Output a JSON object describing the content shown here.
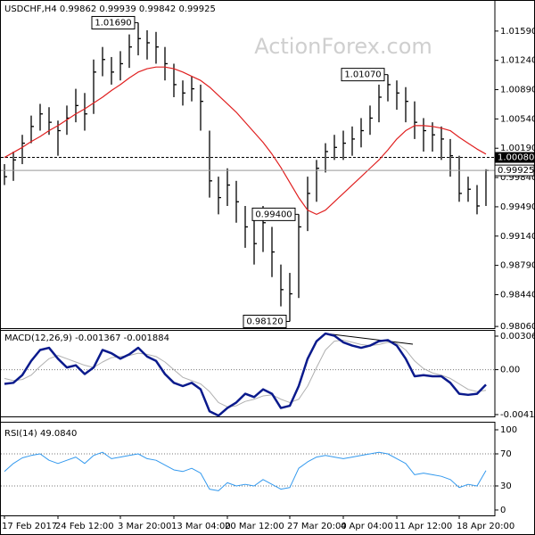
{
  "chart_data": [
    {
      "type": "ohlc",
      "title": "USDCHF,H4 0.99862 0.99939 0.99842 0.99925",
      "watermark": "ActionForex.com",
      "categories": [
        "17 Feb 2017",
        null,
        null,
        null,
        null,
        null,
        "24 Feb 12:00",
        null,
        null,
        null,
        null,
        null,
        null,
        "3 Mar 20:00",
        null,
        null,
        null,
        null,
        null,
        "13 Mar 04:00",
        null,
        null,
        null,
        null,
        null,
        "20 Mar 12:00",
        null,
        null,
        null,
        null,
        null,
        null,
        "27 Mar 20:00",
        null,
        null,
        null,
        null,
        null,
        "4 Apr 04:00",
        null,
        null,
        null,
        null,
        null,
        "11 Apr 12:00",
        null,
        null,
        null,
        null,
        null,
        null,
        "18 Apr 20:00",
        null,
        null,
        null
      ],
      "high": [
        1.0,
        1.0015,
        1.0035,
        1.0058,
        1.0072,
        1.0068,
        1.0052,
        1.007,
        1.009,
        1.0085,
        1.0125,
        1.014,
        1.0128,
        1.0135,
        1.0155,
        1.0169,
        1.016,
        1.0158,
        1.014,
        1.012,
        1.01,
        1.0105,
        1.0095,
        1.004,
        0.9985,
        0.9995,
        0.998,
        0.995,
        0.9935,
        0.995,
        0.9925,
        0.988,
        0.987,
        0.994,
        0.9985,
        1.0005,
        1.0025,
        1.0035,
        1.004,
        1.0045,
        1.0055,
        1.007,
        1.0095,
        1.0107,
        1.01,
        1.0092,
        1.0075,
        1.0055,
        1.005,
        1.0045,
        1.003,
        1.001,
        0.9985,
        0.9975,
        0.99939
      ],
      "low": [
        0.9975,
        0.998,
        1.0,
        1.0025,
        1.004,
        1.0035,
        1.001,
        1.0035,
        1.005,
        1.004,
        1.006,
        1.0105,
        1.0095,
        1.01,
        1.0115,
        1.013,
        1.0125,
        1.012,
        1.01,
        1.008,
        1.007,
        1.0075,
        1.004,
        0.996,
        0.994,
        0.995,
        0.993,
        0.99,
        0.988,
        0.9895,
        0.9865,
        0.983,
        0.9812,
        0.984,
        0.992,
        0.9955,
        0.999,
        1.0005,
        1.0005,
        1.001,
        1.002,
        1.0035,
        1.005,
        1.0075,
        1.0065,
        1.005,
        1.003,
        1.0015,
        1.0015,
        1.0005,
        0.9985,
        0.9955,
        0.9955,
        0.994,
        0.995
      ],
      "close": [
        0.9985,
        1.0005,
        1.0025,
        1.0045,
        1.006,
        1.005,
        1.004,
        1.0055,
        1.007,
        1.006,
        1.011,
        1.0125,
        1.011,
        1.012,
        1.014,
        1.015,
        1.0145,
        1.014,
        1.012,
        1.0095,
        1.0085,
        1.009,
        1.0075,
        0.998,
        0.996,
        0.9975,
        0.9955,
        0.9925,
        0.9905,
        0.993,
        0.9895,
        0.985,
        0.9845,
        0.9925,
        0.9965,
        0.9995,
        1.0015,
        1.002,
        1.0025,
        1.003,
        1.004,
        1.0055,
        1.008,
        1.0095,
        1.0085,
        1.0075,
        1.005,
        1.004,
        1.0035,
        1.003,
        1.001,
        0.9965,
        0.997,
        0.995,
        0.99925
      ],
      "color": "#000000",
      "series": [
        {
          "color": "#e02020",
          "values": [
            1.0008,
            1.0014,
            1.002,
            1.0027,
            1.0033,
            1.004,
            1.0046,
            1.0053,
            1.006,
            1.0066,
            1.0073,
            1.008,
            1.0088,
            1.0095,
            1.0103,
            1.011,
            1.0114,
            1.0116,
            1.0116,
            1.0114,
            1.011,
            1.0105,
            1.01,
            1.0092,
            1.0082,
            1.0072,
            1.0062,
            1.005,
            1.0038,
            1.0026,
            1.0012,
            0.9996,
            0.9978,
            0.996,
            0.9945,
            0.994,
            0.9945,
            0.9955,
            0.9965,
            0.9975,
            0.9985,
            0.9995,
            1.0005,
            1.0017,
            1.003,
            1.004,
            1.0046,
            1.0046,
            1.0045,
            1.0043,
            1.004,
            1.0032,
            1.0025,
            1.0018,
            1.0012
          ]
        }
      ],
      "ylim": [
        0.9804,
        1.0194
      ],
      "yticks": [
        {
          "value": 1.0159,
          "label": "1.01590"
        },
        {
          "value": 1.0124,
          "label": "1.01240"
        },
        {
          "value": 1.0089,
          "label": "1.00890"
        },
        {
          "value": 1.0054,
          "label": "1.00540"
        },
        {
          "value": 1.0019,
          "label": "1.00190"
        },
        {
          "value": 0.9984,
          "label": "0.99840"
        },
        {
          "value": 0.9949,
          "label": "0.99490"
        },
        {
          "value": 0.9914,
          "label": "0.99140"
        },
        {
          "value": 0.9879,
          "label": "0.98790"
        },
        {
          "value": 0.9844,
          "label": "0.98440"
        },
        {
          "value": 0.9806,
          "label": "0.98060"
        }
      ],
      "levels": [
        {
          "value": 1.0008,
          "label": "1.00080"
        }
      ],
      "last": {
        "value": 0.99925,
        "label": "0.99925"
      },
      "annotations": [
        {
          "value": 1.0169,
          "label": "1.01690"
        },
        {
          "value": 1.0107,
          "label": "1.01070"
        },
        {
          "value": 0.9812,
          "label": "0.98120"
        },
        {
          "value": 0.994,
          "label": "0.99400"
        }
      ]
    },
    {
      "type": "line",
      "title": "MACD(12,26,9) -0.001367 -0.001884",
      "series": [
        {
          "color": "#0a1a8c",
          "values": [
            -0.0013,
            -0.0012,
            -0.0005,
            0.0008,
            0.0018,
            0.002,
            0.001,
            0.0002,
            0.0004,
            -0.0004,
            0.0002,
            0.0018,
            0.0015,
            0.001,
            0.0014,
            0.002,
            0.0012,
            0.0008,
            -0.0004,
            -0.0012,
            -0.0015,
            -0.0012,
            -0.0018,
            -0.0038,
            -0.0042,
            -0.0035,
            -0.003,
            -0.0022,
            -0.0025,
            -0.0018,
            -0.0022,
            -0.0035,
            -0.0033,
            -0.0015,
            0.001,
            0.0026,
            0.0033,
            0.0031,
            0.0025,
            0.0022,
            0.002,
            0.0022,
            0.0026,
            0.0027,
            0.0022,
            0.001,
            -0.0006,
            -0.0005,
            -0.0006,
            -0.0006,
            -0.0012,
            -0.0022,
            -0.0023,
            -0.0022,
            -0.001367
          ]
        },
        {
          "color": "#b0b0b0",
          "values": [
            -0.0008,
            -0.001,
            -0.0009,
            -0.0005,
            0.0003,
            0.001,
            0.0013,
            0.001,
            0.0007,
            0.0004,
            0.0002,
            0.0007,
            0.0011,
            0.0012,
            0.0013,
            0.0015,
            0.0014,
            0.0012,
            0.0007,
            0.0,
            -0.0007,
            -0.001,
            -0.0013,
            -0.002,
            -0.003,
            -0.0034,
            -0.0033,
            -0.0029,
            -0.0027,
            -0.0024,
            -0.0023,
            -0.0027,
            -0.003,
            -0.0027,
            -0.0015,
            0.0002,
            0.0018,
            0.0026,
            0.0027,
            0.0025,
            0.0023,
            0.0022,
            0.0023,
            0.0025,
            0.0024,
            0.0018,
            0.0008,
            0.0001,
            -0.0003,
            -0.0005,
            -0.0008,
            -0.0013,
            -0.0018,
            -0.002,
            -0.001884
          ]
        }
      ],
      "ylim": [
        -0.00427,
        0.00355
      ],
      "yticks": [
        0.003063,
        {
          "value": 0,
          "label": "0.00"
        },
        -0.004104
      ],
      "levels": [
        0
      ]
    },
    {
      "type": "line",
      "title": "RSI(14) 49.0840",
      "series": [
        {
          "color": "#3399ee",
          "values": [
            48,
            58,
            65,
            68,
            70,
            62,
            58,
            62,
            66,
            58,
            68,
            72,
            64,
            66,
            68,
            70,
            64,
            62,
            56,
            50,
            48,
            52,
            46,
            26,
            24,
            34,
            30,
            32,
            30,
            38,
            32,
            26,
            28,
            52,
            60,
            66,
            68,
            66,
            64,
            66,
            68,
            70,
            72,
            70,
            64,
            58,
            44,
            46,
            44,
            42,
            38,
            28,
            32,
            30,
            49.084
          ]
        }
      ],
      "ylim": [
        -6.7,
        108.9
      ],
      "yticks": [
        100,
        70,
        30,
        0
      ],
      "levels": [
        70,
        30
      ]
    }
  ]
}
